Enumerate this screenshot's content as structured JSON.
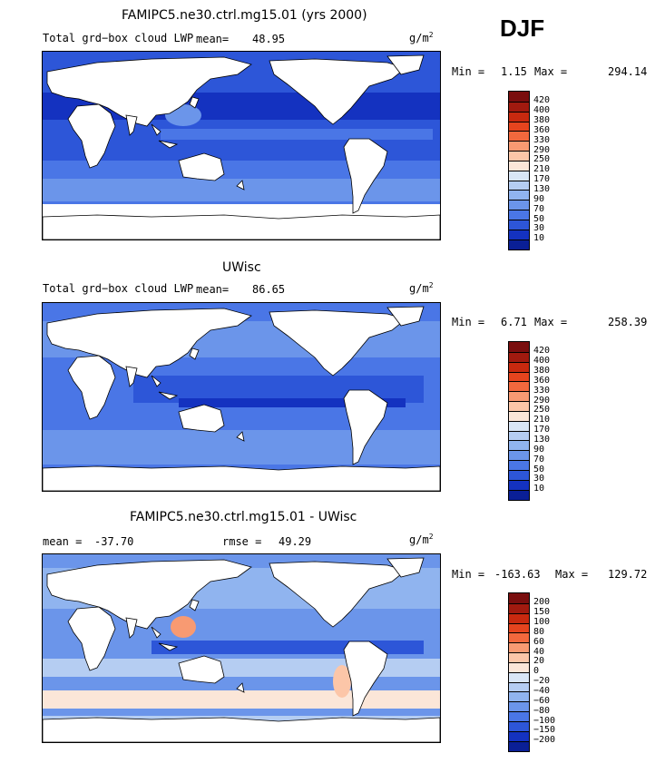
{
  "season": "DJF",
  "unit": "g/m",
  "unit_exp": "2",
  "panels": [
    {
      "title": "FAMIPC5.ne30.ctrl.mg15.01 (yrs 2000)",
      "var_label": "Total grd−box cloud LWP",
      "mean_label": "mean=",
      "mean_value": "48.95",
      "min_label": "Min =",
      "min_value": "1.15",
      "max_label": "Max =",
      "max_value": "294.14",
      "colorbar_levels": [
        "420",
        "400",
        "380",
        "360",
        "330",
        "290",
        "250",
        "210",
        "170",
        "130",
        "90",
        "70",
        "50",
        "30",
        "10"
      ]
    },
    {
      "title": "UWisc",
      "var_label": "Total grd−box cloud LWP",
      "mean_label": "mean=",
      "mean_value": "86.65",
      "min_label": "Min =",
      "min_value": "6.71",
      "max_label": "Max =",
      "max_value": "258.39",
      "colorbar_levels": [
        "420",
        "400",
        "380",
        "360",
        "330",
        "290",
        "250",
        "210",
        "170",
        "130",
        "90",
        "70",
        "50",
        "30",
        "10"
      ]
    },
    {
      "title": "FAMIPC5.ne30.ctrl.mg15.01 - UWisc",
      "mean_label": "mean =",
      "mean_value": "-37.70",
      "rmse_label": "rmse =",
      "rmse_value": "49.29",
      "min_label": "Min =",
      "min_value": "-163.63",
      "max_label": "Max =",
      "max_value": "129.72",
      "colorbar_levels": [
        "200",
        "150",
        "100",
        "80",
        "60",
        "40",
        "20",
        "0",
        "−20",
        "−40",
        "−60",
        "−80",
        "−100",
        "−150",
        "−200"
      ]
    }
  ],
  "colors": {
    "abs_scale": [
      "#7a0e0e",
      "#a11a0f",
      "#c8290f",
      "#e5441e",
      "#f2683d",
      "#f89a72",
      "#fcc6a8",
      "#fbe6d8",
      "#d9e6f6",
      "#b5cdf2",
      "#90b4ef",
      "#6b95ea",
      "#4a76e6",
      "#2d56d8",
      "#1432c0",
      "#0a1f96"
    ],
    "diff_scale": [
      "#7a0e0e",
      "#a11a0f",
      "#c8290f",
      "#e5441e",
      "#f2683d",
      "#f89a72",
      "#fcc6a8",
      "#fbe6d8",
      "#d9e6f6",
      "#b5cdf2",
      "#90b4ef",
      "#6b95ea",
      "#4a76e6",
      "#2d56d8",
      "#1432c0",
      "#0a1f96"
    ],
    "land": "#ffffff",
    "coast": "#000000"
  }
}
